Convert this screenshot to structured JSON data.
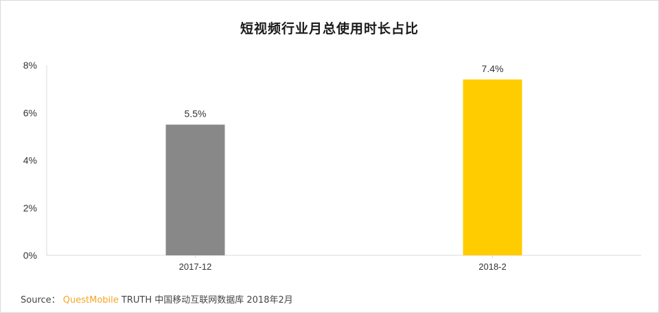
{
  "chart_data": {
    "type": "bar",
    "title": "短视频行业月总使用时长占比",
    "categories": [
      "2017-12",
      "2018-2"
    ],
    "values": [
      5.5,
      7.4
    ],
    "value_labels": [
      "5.5%",
      "7.4%"
    ],
    "bar_colors": [
      "#888888",
      "#ffcc00"
    ],
    "ylim": [
      0,
      8
    ],
    "yticks": [
      0,
      2,
      4,
      6,
      8
    ],
    "ytick_labels": [
      "0%",
      "2%",
      "4%",
      "6%",
      "8%"
    ],
    "xlabel": "",
    "ylabel": "",
    "grid": false,
    "legend": "none"
  },
  "footer": {
    "source_prefix": "Source：",
    "source_brand": "QuestMobile",
    "source_text": "TRUTH 中国移动互联网数据库 2018年2月"
  },
  "colors": {
    "brand_orange": "#f5a623",
    "axis_line": "#d9d9d9"
  }
}
